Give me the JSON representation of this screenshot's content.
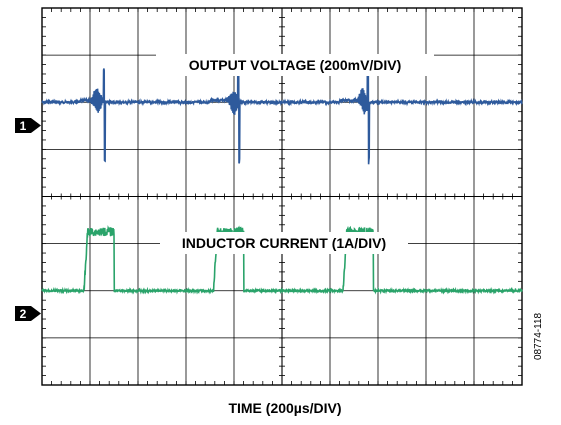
{
  "chart_data": {
    "type": "line",
    "title": "",
    "xlabel": "TIME (200µs/DIV)",
    "ylabel": "",
    "x_grid_divisions": 10,
    "y_grid_divisions": 8,
    "grid": true,
    "x_range_us": [
      0,
      2000
    ],
    "channels": [
      {
        "marker": "1",
        "name": "OUTPUT VOLTAGE (200mV/DIV)",
        "color": "#2e5a9c",
        "baseline_div": 2,
        "events": [
          {
            "t_us": 160,
            "kind": "step-up",
            "amp_div": 0.35
          },
          {
            "t_us": 230,
            "kind": "ripple-burst",
            "amp_div": 0.3
          },
          {
            "t_us": 260,
            "kind": "spike",
            "up_div": 0.65,
            "down_div": -1.25
          },
          {
            "t_us": 700,
            "kind": "step-up",
            "amp_div": 0.35
          },
          {
            "t_us": 800,
            "kind": "ripple-burst",
            "amp_div": 0.3
          },
          {
            "t_us": 820,
            "kind": "spike",
            "up_div": 0.65,
            "down_div": -1.25
          },
          {
            "t_us": 1240,
            "kind": "step-up",
            "amp_div": 0.35
          },
          {
            "t_us": 1340,
            "kind": "ripple-burst",
            "amp_div": 0.3
          },
          {
            "t_us": 1360,
            "kind": "spike",
            "up_div": 0.75,
            "down_div": -1.25
          }
        ]
      },
      {
        "marker": "2",
        "name": "INDUCTOR CURRENT (1A/DIV)",
        "color": "#2aa36a",
        "baseline_div": 6,
        "pulse_height_div": 1.25,
        "pulses": [
          {
            "start_us": 175,
            "end_us": 300
          },
          {
            "start_us": 715,
            "end_us": 840
          },
          {
            "start_us": 1255,
            "end_us": 1380
          }
        ]
      }
    ]
  },
  "figure_id": "08774-118"
}
